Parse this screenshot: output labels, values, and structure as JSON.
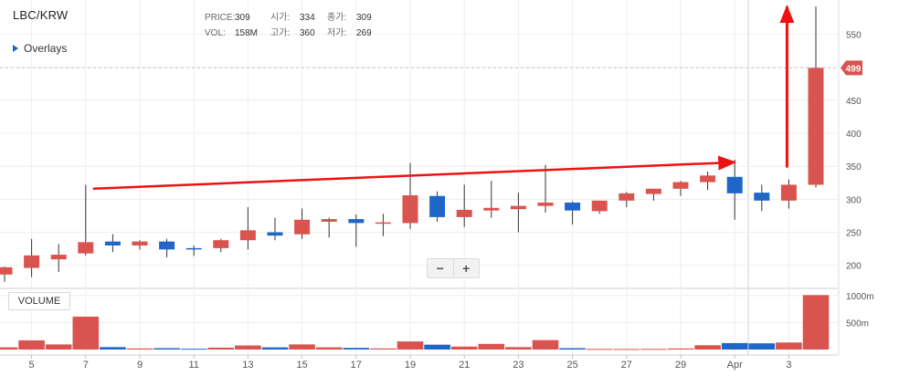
{
  "header": {
    "symbol": "LBC/KRW",
    "overlays_label": "Overlays",
    "info": [
      {
        "label": "PRICE:",
        "value": "309"
      },
      {
        "label": "VOL:",
        "value": "158M"
      },
      {
        "label": "시가:",
        "value": "334"
      },
      {
        "label": "고가:",
        "value": "360"
      },
      {
        "label": "종가:",
        "value": "309"
      },
      {
        "label": "저가:",
        "value": "269"
      }
    ]
  },
  "volume_panel": {
    "label": "VOLUME"
  },
  "zoom": {
    "minus": "−",
    "plus": "+"
  },
  "colors": {
    "up": "#d9534f",
    "down": "#1f66c9",
    "arrow": "#ee1111",
    "price_tag": "#d9534f",
    "grid": "#eeeeee"
  },
  "chart_data": {
    "type": "candlestick",
    "x_tick_labels": [
      "5",
      "7",
      "9",
      "11",
      "13",
      "15",
      "17",
      "19",
      "21",
      "23",
      "25",
      "27",
      "29",
      "Apr",
      "3"
    ],
    "price_axis": {
      "ticks": [
        200,
        250,
        300,
        350,
        400,
        450,
        500,
        550
      ],
      "range": [
        165,
        595
      ]
    },
    "volume_axis": {
      "ticks": [
        500,
        1000
      ],
      "unit": "m",
      "tick_labels": [
        "500m",
        "1000m"
      ],
      "range": [
        0,
        1100
      ]
    },
    "last_price": 499,
    "candles": [
      {
        "date": "Mar 3",
        "open": 186,
        "high": 198,
        "low": 175,
        "close": 197,
        "volume": 40
      },
      {
        "date": "Mar 4",
        "open": 196,
        "high": 240,
        "low": 182,
        "close": 215,
        "volume": 170
      },
      {
        "date": "Mar 5",
        "open": 209,
        "high": 232,
        "low": 190,
        "close": 216,
        "volume": 95
      },
      {
        "date": "Mar 6",
        "open": 218,
        "high": 322,
        "low": 215,
        "close": 235,
        "volume": 610
      },
      {
        "date": "Mar 7",
        "open": 236,
        "high": 247,
        "low": 220,
        "close": 230,
        "volume": 45
      },
      {
        "date": "Mar 8",
        "open": 230,
        "high": 238,
        "low": 224,
        "close": 236,
        "volume": 20
      },
      {
        "date": "Mar 9",
        "open": 236,
        "high": 240,
        "low": 212,
        "close": 224,
        "volume": 25
      },
      {
        "date": "Mar 10",
        "open": 226,
        "high": 230,
        "low": 214,
        "close": 225,
        "volume": 15
      },
      {
        "date": "Mar 11",
        "open": 226,
        "high": 240,
        "low": 220,
        "close": 238,
        "volume": 35
      },
      {
        "date": "Mar 12",
        "open": 238,
        "high": 288,
        "low": 224,
        "close": 253,
        "volume": 75
      },
      {
        "date": "Mar 13",
        "open": 250,
        "high": 272,
        "low": 238,
        "close": 245,
        "volume": 40
      },
      {
        "date": "Mar 14",
        "open": 247,
        "high": 286,
        "low": 240,
        "close": 269,
        "volume": 95
      },
      {
        "date": "Mar 15",
        "open": 266,
        "high": 272,
        "low": 242,
        "close": 270,
        "volume": 40
      },
      {
        "date": "Mar 16",
        "open": 270,
        "high": 277,
        "low": 228,
        "close": 264,
        "volume": 30
      },
      {
        "date": "Mar 17",
        "open": 264,
        "high": 278,
        "low": 244,
        "close": 265,
        "volume": 20
      },
      {
        "date": "Mar 18",
        "open": 264,
        "high": 355,
        "low": 255,
        "close": 306,
        "volume": 150
      },
      {
        "date": "Mar 19",
        "open": 305,
        "high": 312,
        "low": 266,
        "close": 273,
        "volume": 90
      },
      {
        "date": "Mar 20",
        "open": 273,
        "high": 322,
        "low": 258,
        "close": 284,
        "volume": 55
      },
      {
        "date": "Mar 21",
        "open": 283,
        "high": 328,
        "low": 272,
        "close": 287,
        "volume": 105
      },
      {
        "date": "Mar 22",
        "open": 285,
        "high": 310,
        "low": 250,
        "close": 290,
        "volume": 45
      },
      {
        "date": "Mar 23",
        "open": 290,
        "high": 352,
        "low": 280,
        "close": 295,
        "volume": 175
      },
      {
        "date": "Mar 24",
        "open": 295,
        "high": 297,
        "low": 262,
        "close": 283,
        "volume": 25
      },
      {
        "date": "Mar 25",
        "open": 282,
        "high": 298,
        "low": 278,
        "close": 298,
        "volume": 12
      },
      {
        "date": "Mar 26",
        "open": 298,
        "high": 311,
        "low": 288,
        "close": 309,
        "volume": 10
      },
      {
        "date": "Mar 27",
        "open": 308,
        "high": 316,
        "low": 298,
        "close": 316,
        "volume": 12
      },
      {
        "date": "Mar 28",
        "open": 316,
        "high": 328,
        "low": 305,
        "close": 326,
        "volume": 20
      },
      {
        "date": "Mar 29",
        "open": 326,
        "high": 342,
        "low": 314,
        "close": 336,
        "volume": 80
      },
      {
        "date": "Mar 30",
        "open": 334,
        "high": 360,
        "low": 269,
        "close": 309,
        "volume": 120
      },
      {
        "date": "Mar 31",
        "open": 310,
        "high": 322,
        "low": 282,
        "close": 298,
        "volume": 115
      },
      {
        "date": "Apr 1",
        "open": 298,
        "high": 330,
        "low": 286,
        "close": 322,
        "volume": 130
      },
      {
        "date": "Apr 2",
        "open": 322,
        "high": 592,
        "low": 318,
        "close": 499,
        "volume": 1010
      }
    ],
    "annotations": [
      "red trend arrow across the rising lows from Mar 6 toward Mar 30",
      "red vertical arrow pointing up above Apr 1"
    ]
  }
}
